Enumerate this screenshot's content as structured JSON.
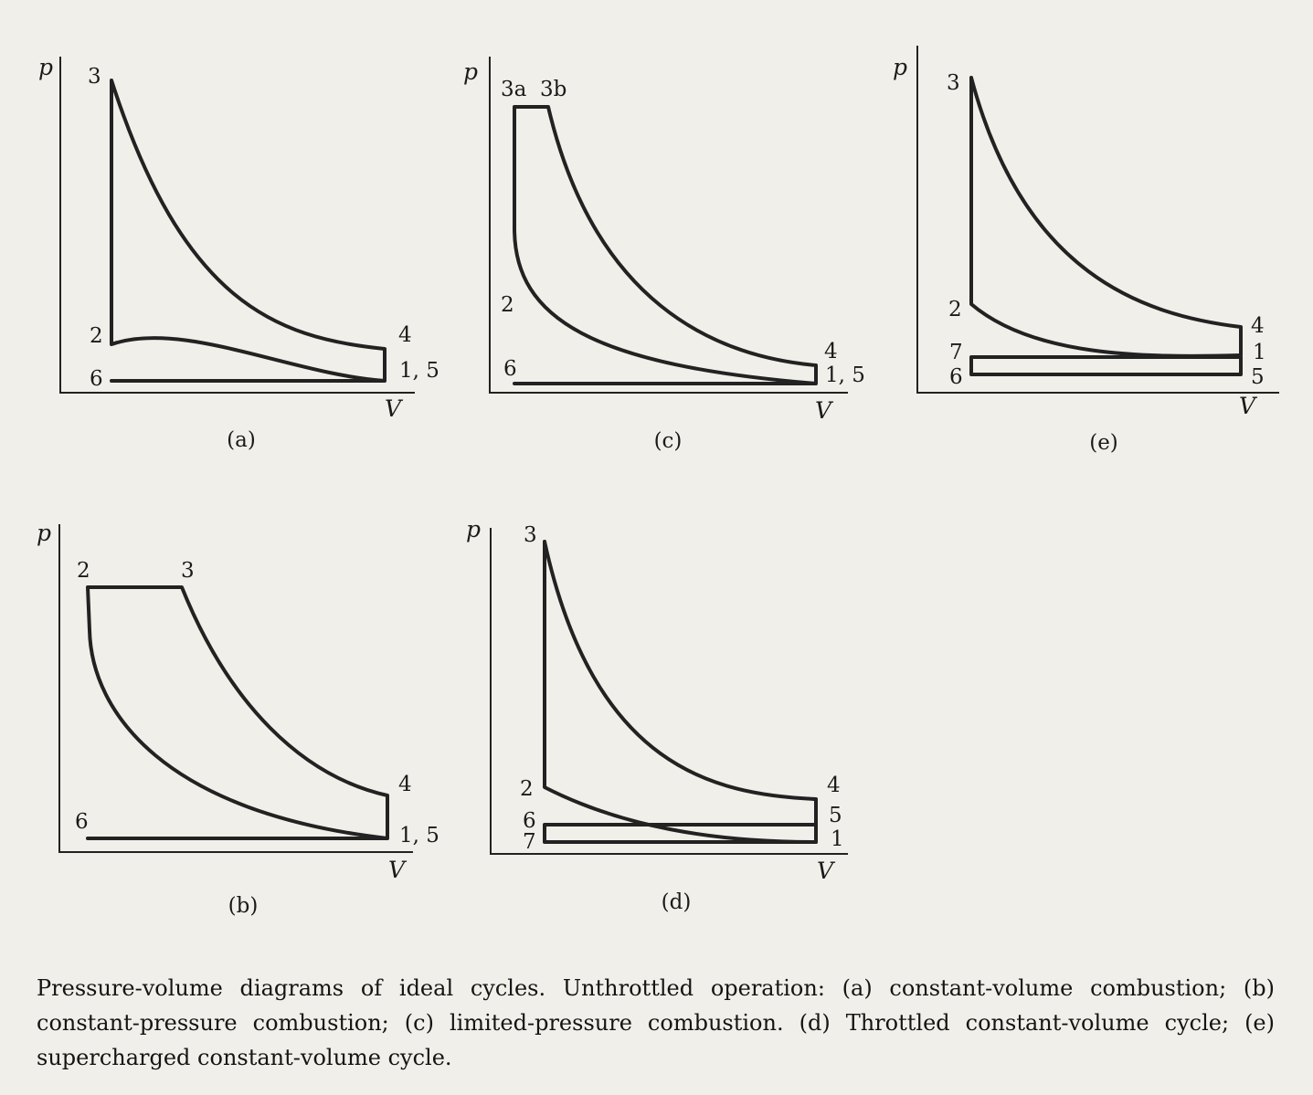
{
  "axes": {
    "pressure": "p",
    "volume": "V"
  },
  "diagrams": {
    "a": {
      "caption": "(a)",
      "points": {
        "p3": "3",
        "p2": "2",
        "p4": "4",
        "p6": "6",
        "p15": "1, 5"
      }
    },
    "c": {
      "caption": "(c)",
      "points": {
        "p3a": "3a",
        "p3b": "3b",
        "p2": "2",
        "p4": "4",
        "p6": "6",
        "p15": "1, 5"
      }
    },
    "e": {
      "caption": "(e)",
      "points": {
        "p3": "3",
        "p2": "2",
        "p4": "4",
        "p7": "7",
        "p1": "1",
        "p6": "6",
        "p5": "5"
      }
    },
    "b": {
      "caption": "(b)",
      "points": {
        "p2": "2",
        "p3": "3",
        "p4": "4",
        "p6": "6",
        "p15": "1, 5"
      }
    },
    "d": {
      "caption": "(d)",
      "points": {
        "p3": "3",
        "p2": "2",
        "p4": "4",
        "p6": "6",
        "p5": "5",
        "p7": "7",
        "p1": "1"
      }
    }
  },
  "caption": {
    "text": "Pressure-volume diagrams of ideal cycles. Unthrottled operation: (a) constant-volume combustion; (b) constant-pressure combustion; (c) limited-pressure combustion. (d) Throttled constant-volume cycle; (e) supercharged constant-volume cycle."
  }
}
